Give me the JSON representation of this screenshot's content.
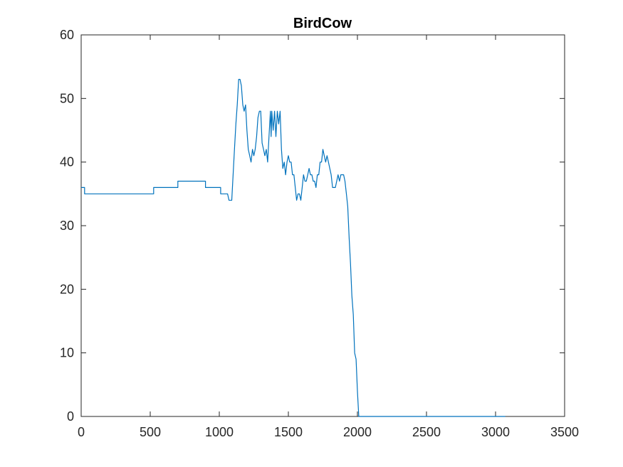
{
  "chart_data": {
    "type": "line",
    "title": "BirdCow",
    "xlabel": "",
    "ylabel": "",
    "xlim": [
      0,
      3500
    ],
    "ylim": [
      0,
      60
    ],
    "xticks": [
      0,
      500,
      1000,
      1500,
      2000,
      2500,
      3000,
      3500
    ],
    "xtick_labels": [
      "0",
      "500",
      "1000",
      "1500",
      "2000",
      "2500",
      "3000",
      "3500"
    ],
    "yticks": [
      0,
      10,
      20,
      30,
      40,
      50,
      60
    ],
    "ytick_labels": [
      "0",
      "10",
      "20",
      "30",
      "40",
      "50",
      "60"
    ],
    "grid": false,
    "line_color": "#0072BD",
    "series": [
      {
        "points": [
          [
            0,
            36
          ],
          [
            25,
            36
          ],
          [
            25,
            35
          ],
          [
            525,
            35
          ],
          [
            525,
            36
          ],
          [
            700,
            36
          ],
          [
            700,
            37
          ],
          [
            900,
            37
          ],
          [
            900,
            36
          ],
          [
            1010,
            36
          ],
          [
            1010,
            35
          ],
          [
            1060,
            35
          ],
          [
            1070,
            34
          ],
          [
            1090,
            34
          ],
          [
            1100,
            38
          ],
          [
            1110,
            42
          ],
          [
            1120,
            46
          ],
          [
            1130,
            49
          ],
          [
            1140,
            53
          ],
          [
            1150,
            53
          ],
          [
            1160,
            52
          ],
          [
            1170,
            49
          ],
          [
            1180,
            48
          ],
          [
            1190,
            49
          ],
          [
            1200,
            45
          ],
          [
            1210,
            42
          ],
          [
            1220,
            41
          ],
          [
            1230,
            40
          ],
          [
            1240,
            42
          ],
          [
            1250,
            41
          ],
          [
            1260,
            42
          ],
          [
            1270,
            44
          ],
          [
            1280,
            47
          ],
          [
            1290,
            48
          ],
          [
            1300,
            48
          ],
          [
            1310,
            43
          ],
          [
            1320,
            42
          ],
          [
            1330,
            41
          ],
          [
            1340,
            42
          ],
          [
            1350,
            40
          ],
          [
            1360,
            44
          ],
          [
            1370,
            48
          ],
          [
            1375,
            44
          ],
          [
            1380,
            48
          ],
          [
            1390,
            45
          ],
          [
            1400,
            48
          ],
          [
            1410,
            44
          ],
          [
            1420,
            48
          ],
          [
            1430,
            46
          ],
          [
            1440,
            48
          ],
          [
            1450,
            42
          ],
          [
            1460,
            39
          ],
          [
            1470,
            40
          ],
          [
            1480,
            38
          ],
          [
            1490,
            40
          ],
          [
            1500,
            41
          ],
          [
            1510,
            40
          ],
          [
            1520,
            40
          ],
          [
            1530,
            38
          ],
          [
            1540,
            38
          ],
          [
            1550,
            36
          ],
          [
            1560,
            34
          ],
          [
            1570,
            35
          ],
          [
            1580,
            35
          ],
          [
            1590,
            34
          ],
          [
            1600,
            36
          ],
          [
            1610,
            38
          ],
          [
            1620,
            37
          ],
          [
            1630,
            37
          ],
          [
            1640,
            38
          ],
          [
            1650,
            39
          ],
          [
            1660,
            38
          ],
          [
            1670,
            38
          ],
          [
            1680,
            37
          ],
          [
            1690,
            37
          ],
          [
            1700,
            36
          ],
          [
            1710,
            38
          ],
          [
            1720,
            38
          ],
          [
            1730,
            40
          ],
          [
            1740,
            40
          ],
          [
            1750,
            42
          ],
          [
            1760,
            41
          ],
          [
            1770,
            40
          ],
          [
            1780,
            41
          ],
          [
            1790,
            40
          ],
          [
            1800,
            39
          ],
          [
            1810,
            38
          ],
          [
            1820,
            36
          ],
          [
            1830,
            36
          ],
          [
            1840,
            36
          ],
          [
            1850,
            37
          ],
          [
            1860,
            38
          ],
          [
            1870,
            37
          ],
          [
            1880,
            38
          ],
          [
            1890,
            38
          ],
          [
            1900,
            38
          ],
          [
            1910,
            37
          ],
          [
            1920,
            35
          ],
          [
            1930,
            33
          ],
          [
            1940,
            28
          ],
          [
            1950,
            24
          ],
          [
            1960,
            19
          ],
          [
            1970,
            16
          ],
          [
            1980,
            10
          ],
          [
            1990,
            9
          ],
          [
            2000,
            4
          ],
          [
            2010,
            0
          ],
          [
            2030,
            0
          ],
          [
            3060,
            0
          ],
          [
            3070,
            0
          ]
        ]
      }
    ]
  }
}
